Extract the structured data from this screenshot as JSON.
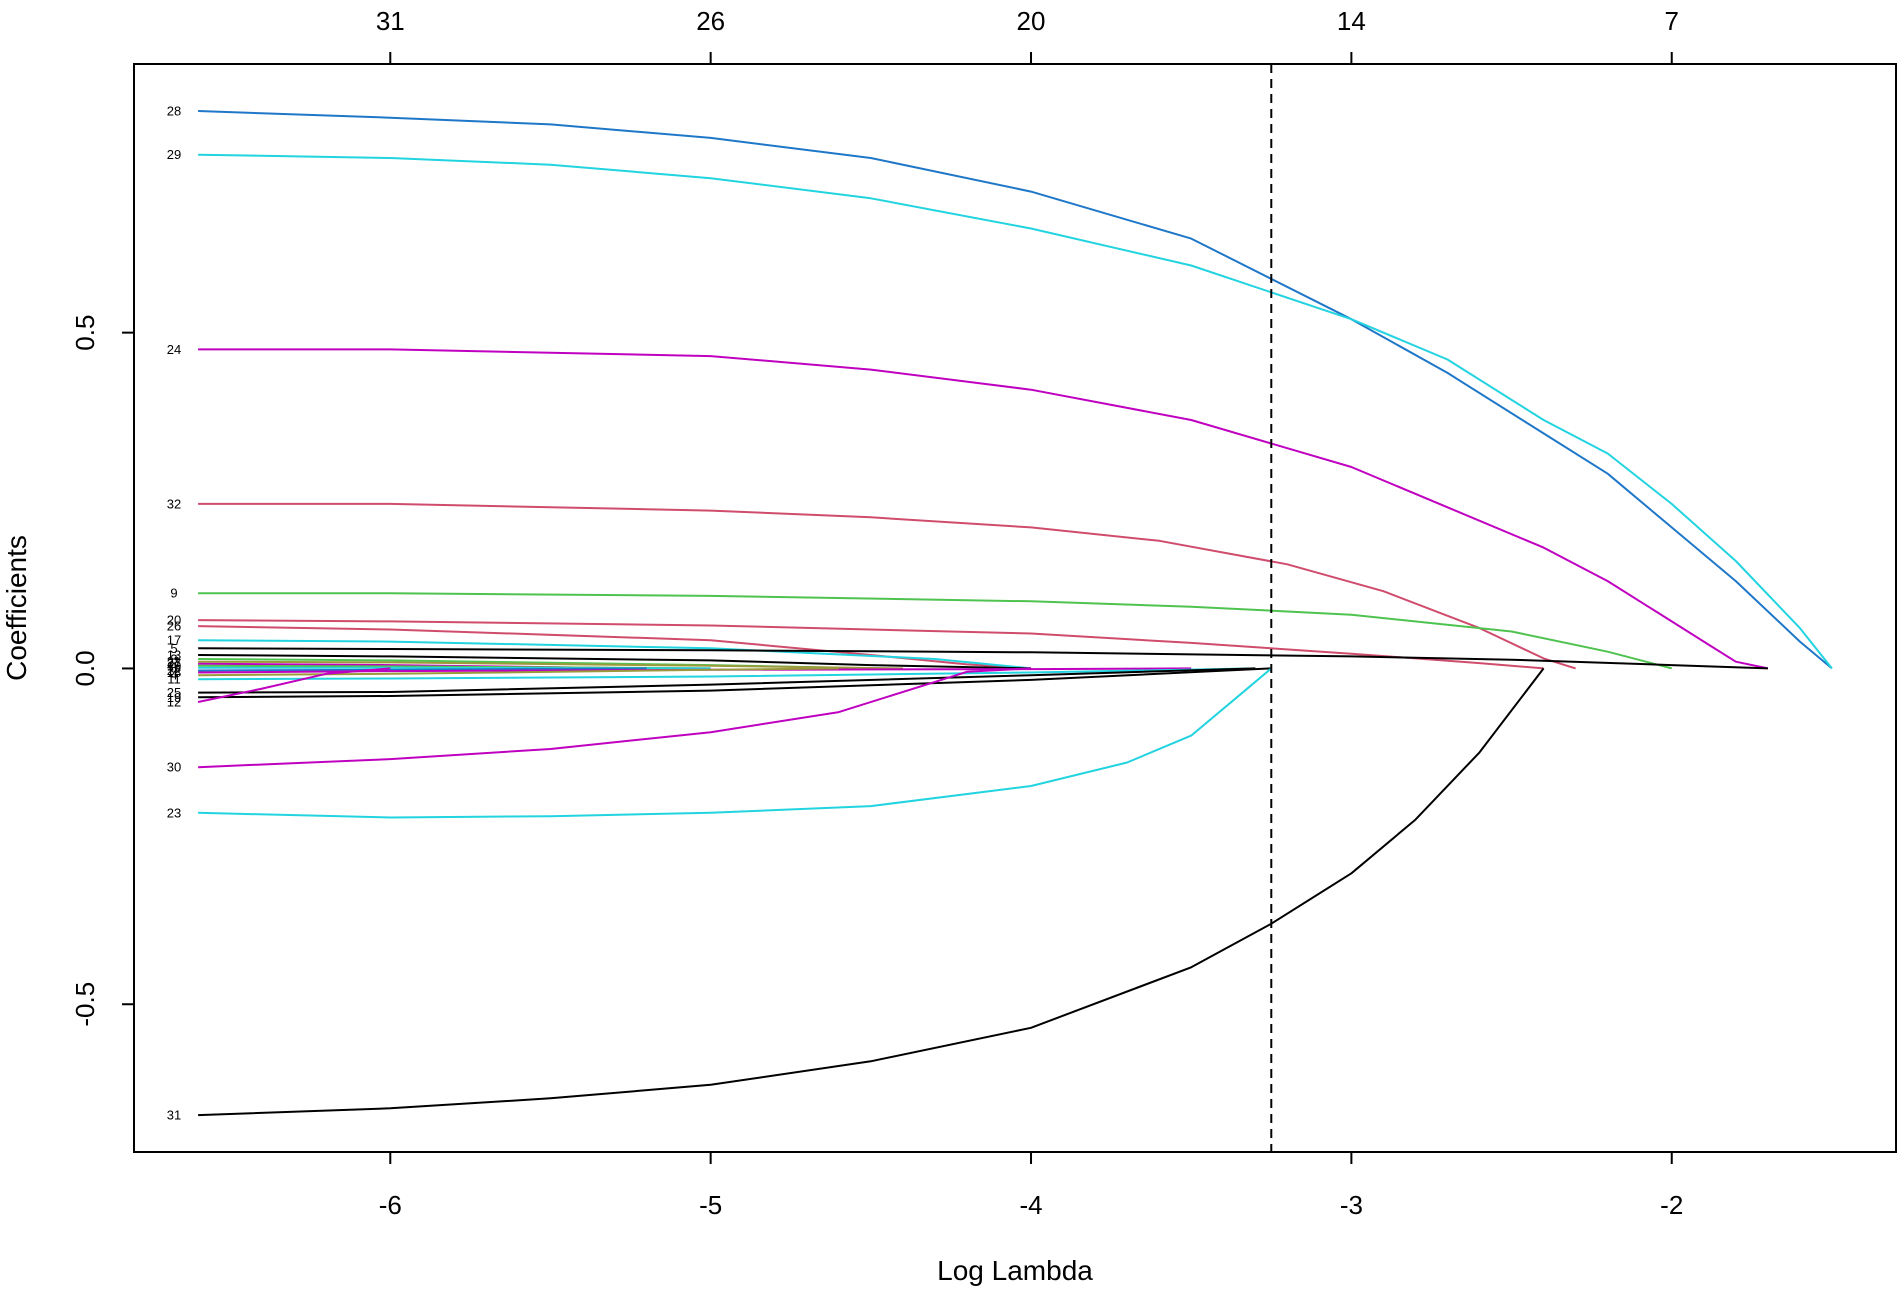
{
  "chart_data": {
    "type": "line",
    "title": "",
    "xlabel": "Log Lambda",
    "ylabel": "Coefficients",
    "xlim": [
      -6.8,
      -1.3
    ],
    "ylim": [
      -0.72,
      0.9
    ],
    "x_ticks": [
      -6,
      -5,
      -4,
      -3,
      -2
    ],
    "x_tick_labels": [
      "-6",
      "-5",
      "-4",
      "-3",
      "-2"
    ],
    "y_ticks": [
      -0.5,
      0.0,
      0.5
    ],
    "y_tick_labels": [
      "-0.5",
      "0.0",
      "0.5"
    ],
    "top_axis": {
      "positions": [
        -6,
        -5,
        -4,
        -3,
        -2
      ],
      "labels": [
        "31",
        "26",
        "20",
        "14",
        "7"
      ]
    },
    "vline": {
      "x": -3.25,
      "style": "dashed"
    },
    "grid": false,
    "legend": "none",
    "series": [
      {
        "name": "28",
        "color": "#1f77c8",
        "x": [
          -6.6,
          -6.0,
          -5.5,
          -5.0,
          -4.5,
          -4.0,
          -3.5,
          -3.0,
          -2.7,
          -2.4,
          -2.2,
          -2.0,
          -1.8,
          -1.6,
          -1.5
        ],
        "y": [
          0.83,
          0.82,
          0.81,
          0.79,
          0.76,
          0.71,
          0.64,
          0.52,
          0.44,
          0.35,
          0.29,
          0.21,
          0.13,
          0.04,
          0.0
        ]
      },
      {
        "name": "29",
        "color": "#22d3e0",
        "x": [
          -6.6,
          -6.0,
          -5.5,
          -5.0,
          -4.5,
          -4.0,
          -3.5,
          -3.0,
          -2.7,
          -2.4,
          -2.2,
          -2.0,
          -1.8,
          -1.6,
          -1.5
        ],
        "y": [
          0.765,
          0.76,
          0.75,
          0.73,
          0.7,
          0.655,
          0.6,
          0.52,
          0.46,
          0.37,
          0.32,
          0.245,
          0.16,
          0.06,
          0.0
        ]
      },
      {
        "name": "24",
        "color": "#c000c0",
        "x": [
          -6.6,
          -6.0,
          -5.5,
          -5.0,
          -4.5,
          -4.0,
          -3.5,
          -3.0,
          -2.7,
          -2.4,
          -2.2,
          -2.0,
          -1.9,
          -1.8,
          -1.7
        ],
        "y": [
          0.475,
          0.475,
          0.47,
          0.465,
          0.445,
          0.415,
          0.37,
          0.3,
          0.24,
          0.18,
          0.13,
          0.07,
          0.04,
          0.01,
          0.0
        ]
      },
      {
        "name": "32",
        "color": "#d04c6c",
        "x": [
          -6.6,
          -6.0,
          -5.5,
          -5.0,
          -4.5,
          -4.0,
          -3.6,
          -3.2,
          -2.9,
          -2.6,
          -2.4,
          -2.3
        ],
        "y": [
          0.245,
          0.245,
          0.24,
          0.235,
          0.225,
          0.21,
          0.19,
          0.155,
          0.115,
          0.06,
          0.015,
          0.0
        ]
      },
      {
        "name": "9",
        "color": "#4fc34f",
        "x": [
          -6.6,
          -6.0,
          -5.0,
          -4.0,
          -3.5,
          -3.0,
          -2.5,
          -2.2,
          -2.0
        ],
        "y": [
          0.112,
          0.112,
          0.108,
          0.1,
          0.092,
          0.08,
          0.055,
          0.025,
          0.0
        ]
      },
      {
        "name": "20",
        "color": "#d04c6c",
        "x": [
          -6.6,
          -6.0,
          -5.0,
          -4.0,
          -3.5,
          -3.0,
          -2.6,
          -2.4
        ],
        "y": [
          0.072,
          0.07,
          0.064,
          0.052,
          0.038,
          0.022,
          0.008,
          0.0
        ]
      },
      {
        "name": "26",
        "color": "#d04c6c",
        "x": [
          -6.6,
          -6.0,
          -5.0,
          -4.5,
          -4.2,
          -4.0
        ],
        "y": [
          0.063,
          0.058,
          0.042,
          0.02,
          0.006,
          0.0
        ]
      },
      {
        "name": "17",
        "color": "#22d3e0",
        "x": [
          -6.6,
          -6.0,
          -5.0,
          -4.3,
          -4.0
        ],
        "y": [
          0.042,
          0.04,
          0.03,
          0.014,
          0.0
        ]
      },
      {
        "name": "5",
        "color": "#000000",
        "x": [
          -6.6,
          -6.0,
          -5.0,
          -4.0,
          -3.0,
          -2.5,
          -2.0,
          -1.7
        ],
        "y": [
          0.03,
          0.029,
          0.027,
          0.024,
          0.018,
          0.013,
          0.005,
          0.0
        ]
      },
      {
        "name": "13",
        "color": "#000000",
        "x": [
          -6.6,
          -6.0,
          -5.0,
          -4.5,
          -4.0
        ],
        "y": [
          0.02,
          0.018,
          0.012,
          0.005,
          0.0
        ]
      },
      {
        "name": "3",
        "color": "#4fc34f",
        "x": [
          -6.6,
          -6.0,
          -5.0,
          -4.5
        ],
        "y": [
          0.014,
          0.012,
          0.005,
          0.0
        ]
      },
      {
        "name": "21",
        "color": "#9a9a3c",
        "x": [
          -6.6,
          -6.0,
          -5.0,
          -4.4
        ],
        "y": [
          0.01,
          0.009,
          0.004,
          0.0
        ]
      },
      {
        "name": "27",
        "color": "#c000c0",
        "x": [
          -6.6,
          -6.0,
          -5.2
        ],
        "y": [
          0.007,
          0.005,
          0.0
        ]
      },
      {
        "name": "10",
        "color": "#4fc34f",
        "x": [
          -6.6,
          -6.0,
          -5.0
        ],
        "y": [
          0.004,
          0.003,
          0.0
        ]
      },
      {
        "name": "8",
        "color": "#22d3e0",
        "x": [
          -6.6,
          -6.0,
          -5.0
        ],
        "y": [
          0.001,
          0.001,
          0.0
        ]
      },
      {
        "name": "22",
        "color": "#1f77c8",
        "x": [
          -6.6,
          -6.0,
          -5.2
        ],
        "y": [
          -0.003,
          -0.002,
          0.0
        ]
      },
      {
        "name": "18",
        "color": "#c000c0",
        "x": [
          -6.6,
          -6.0,
          -5.0,
          -4.0,
          -3.5
        ],
        "y": [
          -0.006,
          -0.004,
          -0.002,
          -0.001,
          0.0
        ]
      },
      {
        "name": "4",
        "color": "#9a9a3c",
        "x": [
          -6.6,
          -6.0,
          -5.0,
          -4.6
        ],
        "y": [
          -0.01,
          -0.008,
          -0.002,
          0.0
        ]
      },
      {
        "name": "11",
        "color": "#22d3e0",
        "x": [
          -6.6,
          -6.0,
          -5.0,
          -4.0,
          -3.3
        ],
        "y": [
          -0.016,
          -0.015,
          -0.012,
          -0.006,
          0.0
        ]
      },
      {
        "name": "25",
        "color": "#000000",
        "x": [
          -6.6,
          -6.0,
          -5.0,
          -4.0,
          -3.3
        ],
        "y": [
          -0.036,
          -0.035,
          -0.024,
          -0.01,
          0.0
        ]
      },
      {
        "name": "19",
        "color": "#000000",
        "x": [
          -6.6,
          -6.0,
          -5.0,
          -4.0,
          -3.25
        ],
        "y": [
          -0.043,
          -0.041,
          -0.033,
          -0.017,
          0.0
        ]
      },
      {
        "name": "12",
        "color": "#c000c0",
        "x": [
          -6.6,
          -6.4,
          -6.2,
          -6.0
        ],
        "y": [
          -0.05,
          -0.03,
          -0.008,
          0.0
        ]
      },
      {
        "name": "30",
        "color": "#c000c0",
        "x": [
          -6.6,
          -6.0,
          -5.5,
          -5.0,
          -4.6,
          -4.3,
          -4.2,
          -4.0
        ],
        "y": [
          -0.147,
          -0.135,
          -0.12,
          -0.095,
          -0.065,
          -0.02,
          -0.005,
          0.0
        ]
      },
      {
        "name": "23",
        "color": "#22d3e0",
        "x": [
          -6.6,
          -6.0,
          -5.5,
          -5.0,
          -4.5,
          -4.0,
          -3.7,
          -3.5,
          -3.35,
          -3.25
        ],
        "y": [
          -0.215,
          -0.222,
          -0.22,
          -0.215,
          -0.205,
          -0.175,
          -0.14,
          -0.1,
          -0.04,
          0.0
        ]
      },
      {
        "name": "31",
        "color": "#000000",
        "x": [
          -6.6,
          -6.0,
          -5.5,
          -5.0,
          -4.5,
          -4.0,
          -3.5,
          -3.25,
          -3.0,
          -2.8,
          -2.6,
          -2.4
        ],
        "y": [
          -0.665,
          -0.655,
          -0.64,
          -0.62,
          -0.585,
          -0.535,
          -0.445,
          -0.38,
          -0.305,
          -0.225,
          -0.125,
          0.0
        ]
      }
    ]
  }
}
